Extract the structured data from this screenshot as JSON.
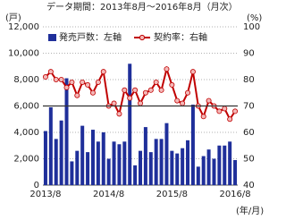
{
  "chart_data": {
    "type": "bar_line",
    "subtitle": "データ期間：2013年8月～2016年8月（月次）",
    "y_unit": "(戸)",
    "y2_unit": "(%)",
    "x_unit": "(年/月)",
    "categories": [
      "2013/8",
      null,
      null,
      null,
      null,
      null,
      null,
      null,
      null,
      null,
      null,
      null,
      "2014/8",
      null,
      null,
      null,
      null,
      null,
      null,
      null,
      null,
      null,
      null,
      null,
      "2015/8",
      null,
      null,
      null,
      null,
      null,
      null,
      null,
      null,
      null,
      null,
      null,
      "2016/8"
    ],
    "series": [
      {
        "name": "発売戸数：左軸",
        "color": "#1f2f9a",
        "axis": "y",
        "values": [
          4100,
          5900,
          3500,
          4900,
          8100,
          1800,
          2600,
          4500,
          2500,
          4200,
          3300,
          4000,
          2000,
          3300,
          3100,
          3300,
          9200,
          1500,
          2600,
          4400,
          2500,
          3500,
          3500,
          4700,
          2600,
          2400,
          2800,
          3400,
          6100,
          1400,
          2200,
          2700,
          2000,
          3000,
          3000,
          3300,
          1900
        ]
      },
      {
        "name": "契約率：右軸",
        "color": "#c00000",
        "axis": "y2",
        "values": [
          81,
          83,
          80,
          80,
          77,
          79,
          74,
          79,
          78,
          75,
          79,
          83,
          70,
          71,
          67,
          76,
          73,
          76,
          71,
          75,
          76,
          79,
          76,
          84,
          78,
          72,
          71,
          75,
          83,
          70,
          66,
          72,
          70,
          68,
          69,
          65,
          68
        ]
      }
    ],
    "reference_line": {
      "axis": "y2",
      "value": 70
    },
    "ylim": [
      0,
      12000
    ],
    "yticks": [
      0,
      {
        "value": 2000,
        "label": "2,000"
      },
      {
        "value": 4000,
        "label": "4,000"
      },
      {
        "value": 6000,
        "label": "6,000"
      },
      {
        "value": 8000,
        "label": "8,000"
      },
      {
        "value": 10000,
        "label": "10,000"
      },
      {
        "value": 12000,
        "label": "12,000"
      }
    ],
    "y2lim": [
      40,
      100
    ],
    "y2ticks": [
      40,
      50,
      60,
      70,
      80,
      90,
      100
    ],
    "grid": true
  }
}
